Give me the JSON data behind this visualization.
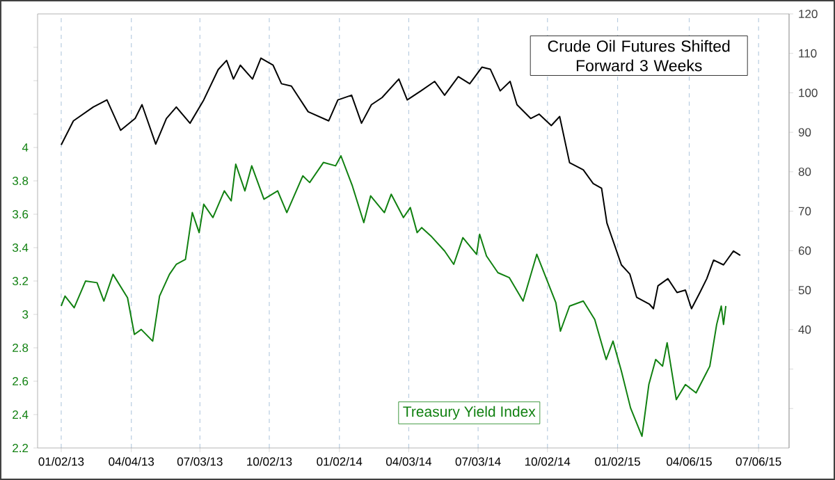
{
  "chart_data": {
    "type": "line",
    "xlim": [
      "2012-12-02",
      "2015-08-15"
    ],
    "xticks": [
      {
        "value": "2013-01-02",
        "label": "01/02/13"
      },
      {
        "value": "2013-04-04",
        "label": "04/04/13"
      },
      {
        "value": "2013-07-03",
        "label": "07/03/13"
      },
      {
        "value": "2013-10-02",
        "label": "10/02/13"
      },
      {
        "value": "2014-01-02",
        "label": "01/02/14"
      },
      {
        "value": "2014-04-03",
        "label": "04/03/14"
      },
      {
        "value": "2014-07-03",
        "label": "07/03/14"
      },
      {
        "value": "2014-10-02",
        "label": "10/02/14"
      },
      {
        "value": "2015-01-02",
        "label": "01/02/15"
      },
      {
        "value": "2015-04-06",
        "label": "04/06/15"
      },
      {
        "value": "2015-07-06",
        "label": "07/06/15"
      }
    ],
    "ylim": [
      2.2,
      4.8
    ],
    "yticks": [
      2.2,
      2.4,
      2.6,
      2.8,
      3,
      3.2,
      3.4,
      3.6,
      3.8,
      4,
      {
        "value": 4.2,
        "label": null
      },
      {
        "value": 4.4,
        "label": null
      },
      {
        "value": 4.6,
        "label": null
      }
    ],
    "y2lim": [
      10,
      120
    ],
    "y2ticks": [
      {
        "value": 20,
        "label": null
      },
      {
        "value": 30,
        "label": null
      },
      40,
      50,
      60,
      70,
      80,
      90,
      100,
      110,
      120
    ],
    "grid": "x",
    "marker": "none",
    "line_style": "solid",
    "series": [
      {
        "name": "Crude Oil Futures Shifted Forward 3 Weeks",
        "color": "#000000",
        "axis": "y2",
        "x": [
          "2013-01-02",
          "2013-01-18",
          "2013-02-13",
          "2013-03-03",
          "2013-03-21",
          "2013-04-09",
          "2013-04-18",
          "2013-05-06",
          "2013-05-20",
          "2013-06-02",
          "2013-06-20",
          "2013-07-08",
          "2013-07-27",
          "2013-08-07",
          "2013-08-16",
          "2013-08-25",
          "2013-09-10",
          "2013-09-21",
          "2013-10-07",
          "2013-10-18",
          "2013-10-31",
          "2013-11-22",
          "2013-12-19",
          "2013-12-31",
          "2014-01-18",
          "2014-01-31",
          "2014-02-13",
          "2014-02-27",
          "2014-03-21",
          "2014-04-01",
          "2014-04-19",
          "2014-05-07",
          "2014-05-20",
          "2014-06-07",
          "2014-06-22",
          "2014-07-08",
          "2014-07-19",
          "2014-08-01",
          "2014-08-14",
          "2014-08-23",
          "2014-09-10",
          "2014-09-21",
          "2014-10-07",
          "2014-10-18",
          "2014-10-31",
          "2014-11-18",
          "2014-12-01",
          "2014-12-12",
          "2014-12-19",
          "2015-01-07",
          "2015-01-18",
          "2015-01-27",
          "2015-02-13",
          "2015-02-18",
          "2015-02-24",
          "2015-03-09",
          "2015-03-21",
          "2015-04-01",
          "2015-04-09",
          "2015-04-20",
          "2015-04-29",
          "2015-05-08",
          "2015-05-21",
          "2015-06-03",
          "2015-06-12"
        ],
        "values": [
          86.8,
          92.9,
          96.4,
          98.2,
          90.5,
          93.5,
          97,
          87,
          93.5,
          96.4,
          92.3,
          98.2,
          105.9,
          108.2,
          103.5,
          107,
          103.5,
          108.8,
          107,
          102.3,
          101.7,
          95.2,
          92.9,
          98.2,
          99.4,
          92.3,
          97,
          98.8,
          103.5,
          98.2,
          100.5,
          102.9,
          99.4,
          104.1,
          102.3,
          106.5,
          106,
          100.5,
          102.9,
          97,
          93.5,
          94.6,
          91.7,
          94,
          82.3,
          80.5,
          77,
          75.8,
          67,
          56.4,
          54.1,
          48.2,
          46.4,
          45.3,
          51.1,
          52.9,
          49.4,
          50,
          45.3,
          49.4,
          52.9,
          57.6,
          56.4,
          59.9,
          58.8
        ]
      },
      {
        "name": "Treasury Yield Index",
        "color": "#108010",
        "axis": "y",
        "x": [
          "2013-01-02",
          "2013-01-07",
          "2013-01-19",
          "2013-02-03",
          "2013-02-18",
          "2013-02-27",
          "2013-03-11",
          "2013-03-30",
          "2013-04-08",
          "2013-04-17",
          "2013-05-02",
          "2013-05-11",
          "2013-05-24",
          "2013-06-02",
          "2013-06-14",
          "2013-06-23",
          "2013-07-02",
          "2013-07-08",
          "2013-07-20",
          "2013-08-04",
          "2013-08-13",
          "2013-08-19",
          "2013-08-31",
          "2013-09-09",
          "2013-09-25",
          "2013-10-13",
          "2013-10-25",
          "2013-11-15",
          "2013-11-24",
          "2013-12-12",
          "2013-12-28",
          "2014-01-04",
          "2014-01-19",
          "2014-02-03",
          "2014-02-12",
          "2014-03-02",
          "2014-03-11",
          "2014-03-27",
          "2014-04-05",
          "2014-04-14",
          "2014-04-20",
          "2014-05-02",
          "2014-05-20",
          "2014-06-01",
          "2014-06-13",
          "2014-07-01",
          "2014-07-05",
          "2014-07-14",
          "2014-07-29",
          "2014-08-13",
          "2014-08-31",
          "2014-09-18",
          "2014-10-13",
          "2014-10-19",
          "2014-10-31",
          "2014-11-18",
          "2014-12-03",
          "2014-12-18",
          "2014-12-27",
          "2015-01-07",
          "2015-01-19",
          "2015-02-03",
          "2015-02-12",
          "2015-02-21",
          "2015-03-02",
          "2015-03-08",
          "2015-03-20",
          "2015-04-01",
          "2015-04-15",
          "2015-05-03",
          "2015-05-12",
          "2015-05-18",
          "2015-05-21",
          "2015-05-24"
        ],
        "values": [
          3.05,
          3.11,
          3.04,
          3.2,
          3.19,
          3.08,
          3.24,
          3.1,
          2.88,
          2.91,
          2.84,
          3.11,
          3.24,
          3.3,
          3.33,
          3.61,
          3.49,
          3.66,
          3.58,
          3.74,
          3.68,
          3.9,
          3.74,
          3.89,
          3.69,
          3.74,
          3.61,
          3.83,
          3.79,
          3.91,
          3.89,
          3.95,
          3.77,
          3.55,
          3.71,
          3.61,
          3.72,
          3.58,
          3.64,
          3.49,
          3.52,
          3.47,
          3.38,
          3.3,
          3.46,
          3.36,
          3.48,
          3.35,
          3.25,
          3.22,
          3.08,
          3.36,
          3.07,
          2.9,
          3.05,
          3.08,
          2.97,
          2.73,
          2.84,
          2.66,
          2.44,
          2.27,
          2.58,
          2.73,
          2.69,
          2.83,
          2.49,
          2.58,
          2.53,
          2.69,
          2.94,
          3.05,
          2.94,
          3.05
        ]
      }
    ]
  }
}
